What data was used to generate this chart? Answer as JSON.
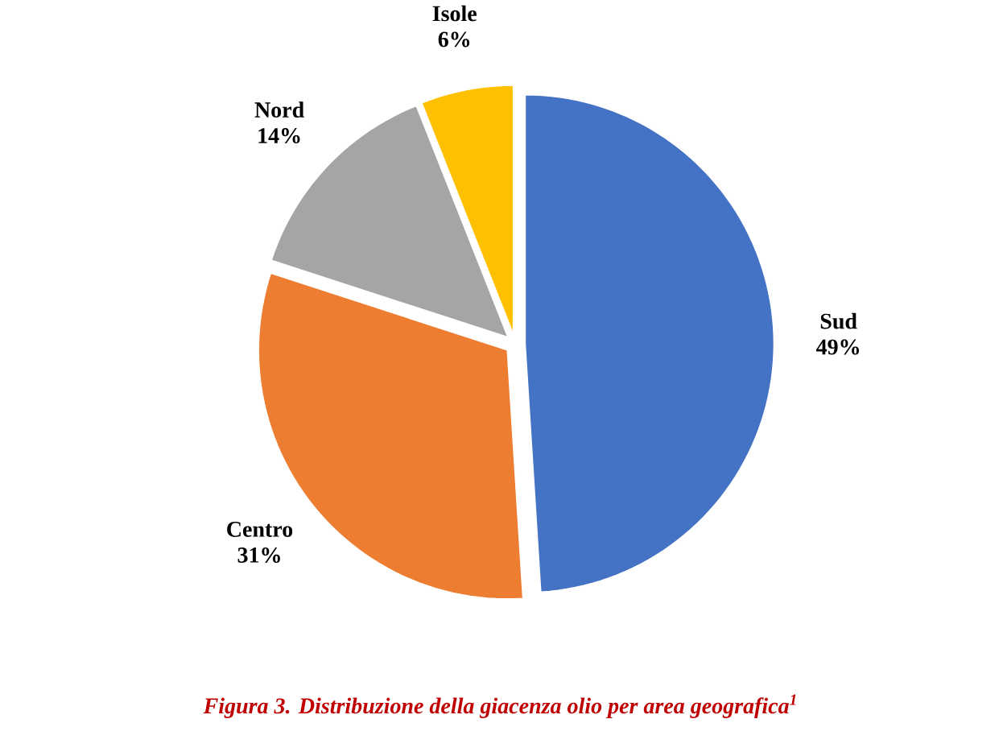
{
  "chart_data": {
    "type": "pie",
    "title": "Figura 3. Distribuzione della giacenza olio per area geografica$^{1}$",
    "categories": [
      "Sud",
      "Centro",
      "Nord",
      "Isole"
    ],
    "values": [
      49,
      31,
      14,
      6
    ],
    "value_labels": [
      "49%",
      "31%",
      "14%",
      "6%"
    ],
    "colors": [
      "#4472c4",
      "#ed7d31",
      "#a5a5a5",
      "#ffc000"
    ]
  }
}
